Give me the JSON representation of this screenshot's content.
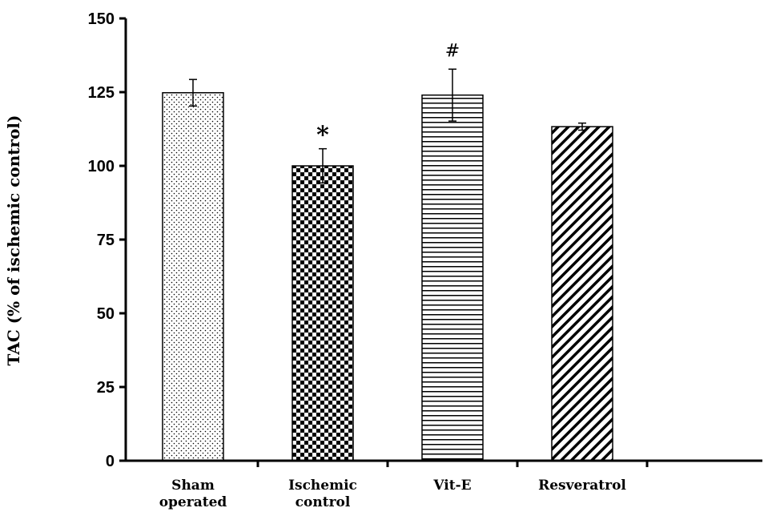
{
  "chart_data": {
    "type": "bar",
    "categories": [
      [
        "Sham",
        "operated"
      ],
      [
        "Ischemic",
        "control"
      ],
      [
        "Vit-E"
      ],
      [
        "Resveratrol"
      ]
    ],
    "values": [
      124.8,
      100,
      124,
      113.3
    ],
    "errors": [
      4.5,
      5.8,
      8.8,
      1.2
    ],
    "annotations": [
      "",
      "*",
      "#",
      ""
    ],
    "patterns": [
      "dots",
      "checker",
      "hlines",
      "diagonal"
    ],
    "ylabel": "TAC (% of ischemic control)",
    "xlabel": "",
    "ylim": [
      0,
      150
    ],
    "yticks": [
      0,
      25,
      50,
      75,
      100,
      125,
      150
    ],
    "grid": false,
    "legend": "none"
  },
  "colors": {
    "bar_stroke": "#000000",
    "fill": "#000000",
    "background": "#ffffff"
  }
}
